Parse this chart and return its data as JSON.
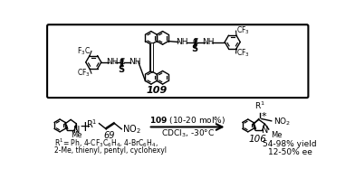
{
  "background_color": "#ffffff",
  "catalyst_label": "109",
  "catalyst_mol_pct": "(10-20 mol%)",
  "solvent": "CDCl₃, -30°C",
  "reactant_label": "69",
  "product_label": "106",
  "yield_text": "54-98% yield",
  "ee_text": "12-50% ee",
  "r1_text": "R¹= Ph, 4-CF₃C₆H₄, 4-BrC₆H₄,",
  "r1_text2": "2-Me, thienyl, pentyl, cyclohexyl",
  "figwidth": 3.92,
  "figheight": 2.08,
  "dpi": 100
}
